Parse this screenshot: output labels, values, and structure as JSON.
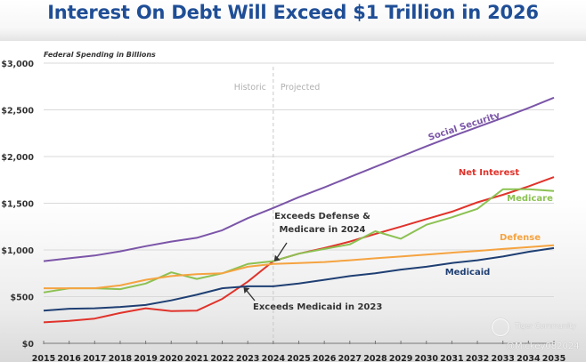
{
  "title": "Interest On Debt Will Exceed $1 Trillion in 2026",
  "watermark": {
    "community": "Tiger Community",
    "handle": "@Mickey082024"
  },
  "chart_data": {
    "type": "line",
    "subtitle": "Federal Spending in Billions",
    "xlabel": "",
    "ylabel": "",
    "ylim": [
      0,
      3000
    ],
    "yticks": [
      0,
      500,
      1000,
      1500,
      2000,
      2500,
      3000
    ],
    "ytick_labels": [
      "$0",
      "$500",
      "$1,000",
      "$1,500",
      "$2,000",
      "$2,500",
      "$3,000"
    ],
    "grid": true,
    "x": [
      2015,
      2016,
      2017,
      2018,
      2019,
      2020,
      2021,
      2022,
      2023,
      2024,
      2025,
      2026,
      2027,
      2028,
      2029,
      2030,
      2031,
      2032,
      2033,
      2034,
      2035
    ],
    "xtick_labels": [
      "2015",
      "2016",
      "2017",
      "2018",
      "2019",
      "2020",
      "2021",
      "2022",
      "2023",
      "2024",
      "2025",
      "2026",
      "2027",
      "2028",
      "2029",
      "2030",
      "2031",
      "2032",
      "2033",
      "2034",
      "2035"
    ],
    "divider": {
      "x": 2024,
      "left_label": "Historic",
      "right_label": "Projected"
    },
    "series": [
      {
        "name": "Social Security",
        "color": "#7b55a8",
        "values": [
          880,
          910,
          940,
          985,
          1040,
          1090,
          1130,
          1210,
          1340,
          1450,
          1565,
          1670,
          1780,
          1890,
          2000,
          2110,
          2215,
          2315,
          2415,
          2520,
          2630
        ]
      },
      {
        "name": "Net Interest",
        "color": "#e0332b",
        "values": [
          225,
          240,
          265,
          325,
          375,
          345,
          350,
          475,
          660,
          880,
          960,
          1020,
          1090,
          1170,
          1250,
          1330,
          1410,
          1510,
          1590,
          1680,
          1780
        ]
      },
      {
        "name": "Medicare",
        "color": "#8cc152",
        "values": [
          545,
          590,
          590,
          580,
          640,
          760,
          690,
          750,
          850,
          880,
          960,
          1010,
          1060,
          1200,
          1120,
          1270,
          1350,
          1440,
          1650,
          1650,
          1630
        ]
      },
      {
        "name": "Defense",
        "color": "#f5a340",
        "values": [
          590,
          590,
          590,
          620,
          680,
          720,
          740,
          750,
          820,
          850,
          860,
          870,
          890,
          910,
          930,
          950,
          970,
          990,
          1010,
          1030,
          1050
        ]
      },
      {
        "name": "Medicaid",
        "color": "#1f3f73",
        "values": [
          350,
          370,
          375,
          390,
          410,
          460,
          520,
          590,
          610,
          610,
          640,
          680,
          720,
          750,
          790,
          820,
          860,
          890,
          930,
          980,
          1020
        ]
      }
    ],
    "series_labels": [
      {
        "series": "Social Security",
        "text": "Social Security"
      },
      {
        "series": "Net Interest",
        "text": "Net Interest"
      },
      {
        "series": "Medicare",
        "text": "Medicare"
      },
      {
        "series": "Defense",
        "text": "Defense"
      },
      {
        "series": "Medicaid",
        "text": "Medicaid"
      }
    ],
    "annotations": [
      {
        "text_lines": [
          "Exceeds Defense &",
          "Medicare in 2024"
        ],
        "points_to": {
          "x": 2024,
          "y": 870
        }
      },
      {
        "text_lines": [
          "Exceeds Medicaid in 2023"
        ],
        "points_to": {
          "x": 2022.8,
          "y": 610
        }
      }
    ]
  }
}
